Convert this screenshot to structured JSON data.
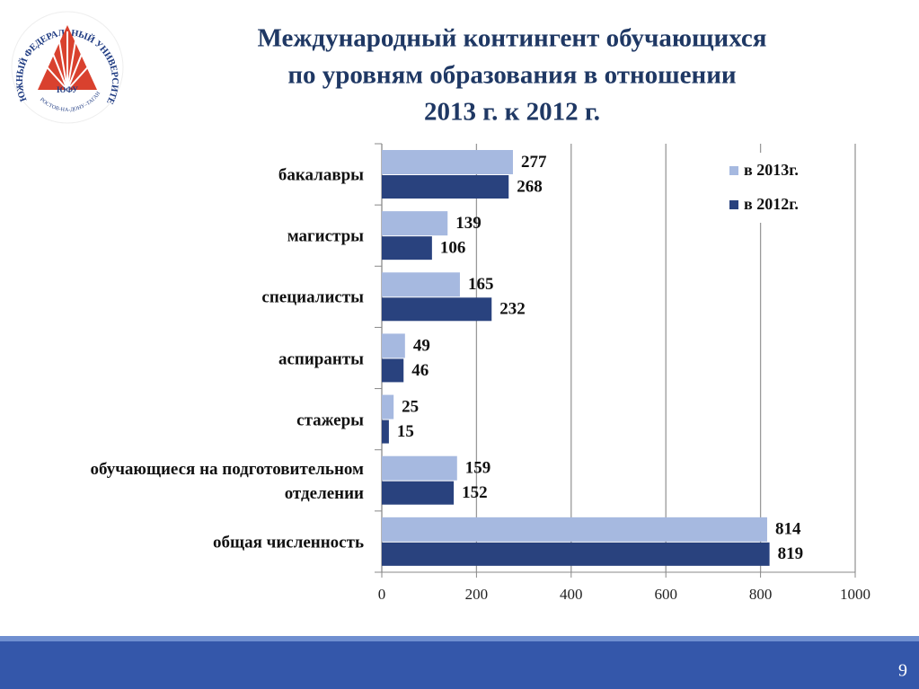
{
  "logo": {
    "name": "ЮЖНЫЙ ФЕДЕРАЛЬНЫЙ УНИВЕРСИТЕТ",
    "abbr": "ЮФУ",
    "city": "РОСТОВ-НА-ДОНУ–ТАГАНРОГ"
  },
  "chart_data": {
    "type": "hbar",
    "title": [
      "Международный контингент обучающихся",
      "по уровням образования в отношении",
      "2013 г.  к  2012 г."
    ],
    "categories": [
      "бакалавры",
      "магистры",
      "специалисты",
      "аспиранты",
      "стажеры",
      "обучающиеся на подготовительном отделении",
      "общая численность"
    ],
    "series": [
      {
        "name": "в 2013г.",
        "color": "#a6b9e0",
        "values": [
          277,
          139,
          165,
          49,
          25,
          159,
          814
        ]
      },
      {
        "name": "в 2012г.",
        "color": "#29427e",
        "values": [
          268,
          106,
          232,
          46,
          15,
          152,
          819
        ]
      }
    ],
    "xlim": [
      0,
      1000
    ],
    "xticks": [
      0,
      200,
      400,
      600,
      800,
      1000
    ],
    "grid": true,
    "legend": "top-right"
  },
  "page_number": "9"
}
